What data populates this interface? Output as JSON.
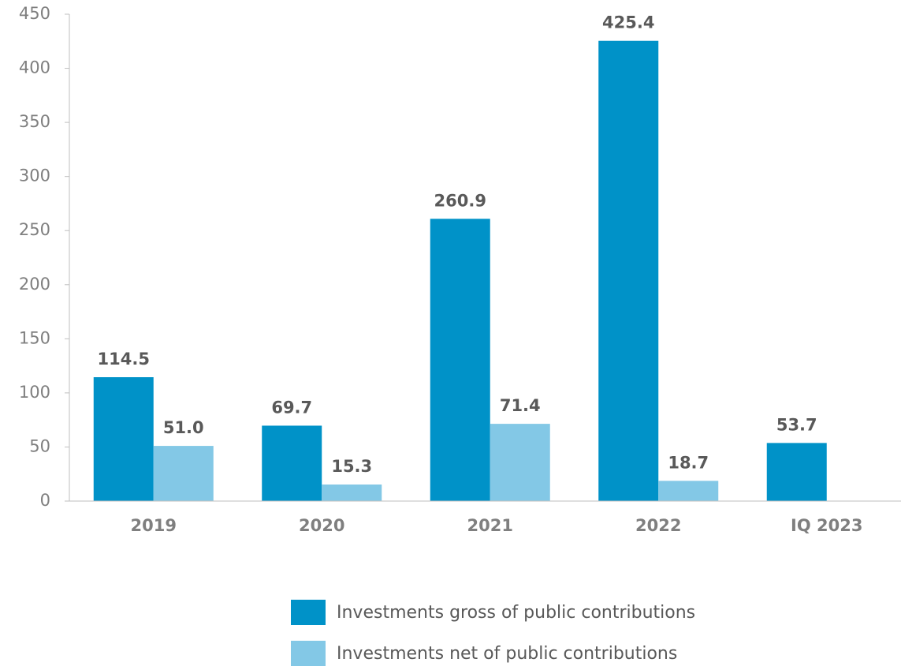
{
  "chart_data": {
    "type": "bar",
    "categories": [
      "2019",
      "2020",
      "2021",
      "2022",
      "IQ 2023"
    ],
    "series": [
      {
        "name": "Investments gross of public contributions",
        "color": "#0092c8",
        "values": [
          114.5,
          69.7,
          260.9,
          425.4,
          53.7
        ],
        "value_labels": [
          "114.5",
          "69.7",
          "260.9",
          "425.4",
          "53.7"
        ]
      },
      {
        "name": "Investments net of public contributions",
        "color": "#83c8e6",
        "values": [
          51.0,
          15.3,
          71.4,
          18.7,
          null
        ],
        "value_labels": [
          "51.0",
          "15.3",
          "71.4",
          "18.7",
          null
        ]
      }
    ],
    "ylim": [
      0,
      450
    ],
    "yticks": [
      0,
      50,
      100,
      150,
      200,
      250,
      300,
      350,
      400,
      450
    ],
    "grid": false,
    "legend": "bottom"
  }
}
